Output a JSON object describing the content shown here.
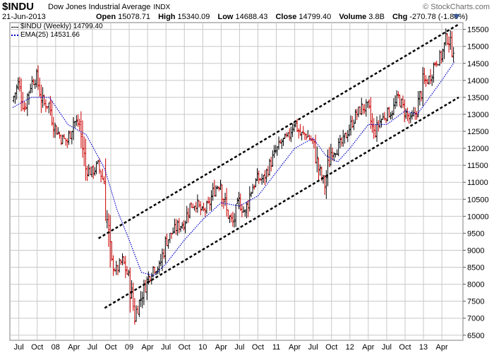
{
  "header": {
    "symbol": "$INDU",
    "name": "Dow Jones Industrial Average",
    "exchange": "INDX",
    "brand": "© StockCharts.com",
    "date": "21-Jun-2013",
    "stats": [
      {
        "label": "Open",
        "value": "15078.71"
      },
      {
        "label": "High",
        "value": "15340.09"
      },
      {
        "label": "Low",
        "value": "14688.43"
      },
      {
        "label": "Close",
        "value": "14799.40"
      },
      {
        "label": "Volume",
        "value": "3.8B"
      },
      {
        "label": "Chg",
        "value": "-270.78 (-1.80%)"
      }
    ]
  },
  "legend": {
    "price": "$INDU (Weekly) 14799.40",
    "ema": "EMA(25) 14531.66"
  },
  "colors": {
    "up": "#000000",
    "down": "#cc0000",
    "ema": "#0000cc",
    "grid": "#c8c8c8",
    "plot_bg": "#ffffff",
    "channel": "#000000"
  },
  "chart_data": {
    "type": "ohlc-bar",
    "interval": "weekly",
    "x_ticks": [
      {
        "label": "Jul",
        "date": "2007-07"
      },
      {
        "label": "Oct",
        "date": "2007-10"
      },
      {
        "label": "08",
        "date": "2008-01"
      },
      {
        "label": "Apr",
        "date": "2008-04"
      },
      {
        "label": "Jul",
        "date": "2008-07"
      },
      {
        "label": "Oct",
        "date": "2008-10"
      },
      {
        "label": "09",
        "date": "2009-01"
      },
      {
        "label": "Apr",
        "date": "2009-04"
      },
      {
        "label": "Jul",
        "date": "2009-07"
      },
      {
        "label": "Oct",
        "date": "2009-10"
      },
      {
        "label": "10",
        "date": "2010-01"
      },
      {
        "label": "Apr",
        "date": "2010-04"
      },
      {
        "label": "Jul",
        "date": "2010-07"
      },
      {
        "label": "Oct",
        "date": "2010-10"
      },
      {
        "label": "11",
        "date": "2011-01"
      },
      {
        "label": "Apr",
        "date": "2011-04"
      },
      {
        "label": "Jul",
        "date": "2011-07"
      },
      {
        "label": "Oct",
        "date": "2011-10"
      },
      {
        "label": "12",
        "date": "2012-01"
      },
      {
        "label": "Apr",
        "date": "2012-04"
      },
      {
        "label": "Jul",
        "date": "2012-07"
      },
      {
        "label": "Oct",
        "date": "2012-10"
      },
      {
        "label": "13",
        "date": "2013-01"
      },
      {
        "label": "Apr",
        "date": "2013-04"
      }
    ],
    "y_ticks": [
      6500,
      7000,
      7500,
      8000,
      8500,
      9000,
      9500,
      10000,
      10500,
      11000,
      11500,
      12000,
      12500,
      13000,
      13500,
      14000,
      14500,
      15000,
      15500
    ],
    "ylim": [
      6350,
      15700
    ],
    "xlim": [
      "2007-06",
      "2013-06"
    ],
    "grid": true,
    "price_path": [
      {
        "date": "2007-06",
        "close": 13400
      },
      {
        "date": "2007-07",
        "close": 13900
      },
      {
        "date": "2007-08",
        "close": 13200
      },
      {
        "date": "2007-09",
        "close": 13900
      },
      {
        "date": "2007-10",
        "close": 14100
      },
      {
        "date": "2007-11",
        "close": 13300
      },
      {
        "date": "2007-12",
        "close": 13300
      },
      {
        "date": "2008-01",
        "close": 12600
      },
      {
        "date": "2008-02",
        "close": 12300
      },
      {
        "date": "2008-03",
        "close": 12200
      },
      {
        "date": "2008-04",
        "close": 12800
      },
      {
        "date": "2008-05",
        "close": 12700
      },
      {
        "date": "2008-06",
        "close": 11400
      },
      {
        "date": "2008-07",
        "close": 11300
      },
      {
        "date": "2008-08",
        "close": 11500
      },
      {
        "date": "2008-09",
        "close": 11000
      },
      {
        "date": "2008-10",
        "close": 8700
      },
      {
        "date": "2008-11",
        "close": 8400
      },
      {
        "date": "2008-12",
        "close": 8700
      },
      {
        "date": "2009-01",
        "close": 8200
      },
      {
        "date": "2009-02",
        "close": 7100
      },
      {
        "date": "2009-03",
        "close": 7600
      },
      {
        "date": "2009-04",
        "close": 8100
      },
      {
        "date": "2009-05",
        "close": 8500
      },
      {
        "date": "2009-06",
        "close": 8500
      },
      {
        "date": "2009-07",
        "close": 9200
      },
      {
        "date": "2009-08",
        "close": 9500
      },
      {
        "date": "2009-09",
        "close": 9700
      },
      {
        "date": "2009-10",
        "close": 9800
      },
      {
        "date": "2009-11",
        "close": 10300
      },
      {
        "date": "2009-12",
        "close": 10400
      },
      {
        "date": "2010-01",
        "close": 10100
      },
      {
        "date": "2010-02",
        "close": 10300
      },
      {
        "date": "2010-03",
        "close": 10800
      },
      {
        "date": "2010-04",
        "close": 11000
      },
      {
        "date": "2010-05",
        "close": 10100
      },
      {
        "date": "2010-06",
        "close": 9800
      },
      {
        "date": "2010-07",
        "close": 10400
      },
      {
        "date": "2010-08",
        "close": 10100
      },
      {
        "date": "2010-09",
        "close": 10800
      },
      {
        "date": "2010-10",
        "close": 11100
      },
      {
        "date": "2010-11",
        "close": 11100
      },
      {
        "date": "2010-12",
        "close": 11500
      },
      {
        "date": "2011-01",
        "close": 11900
      },
      {
        "date": "2011-02",
        "close": 12200
      },
      {
        "date": "2011-03",
        "close": 12300
      },
      {
        "date": "2011-04",
        "close": 12800
      },
      {
        "date": "2011-05",
        "close": 12400
      },
      {
        "date": "2011-06",
        "close": 12400
      },
      {
        "date": "2011-07",
        "close": 12200
      },
      {
        "date": "2011-08",
        "close": 11400
      },
      {
        "date": "2011-09",
        "close": 10900
      },
      {
        "date": "2011-10",
        "close": 11900
      },
      {
        "date": "2011-11",
        "close": 12000
      },
      {
        "date": "2011-12",
        "close": 12200
      },
      {
        "date": "2012-01",
        "close": 12600
      },
      {
        "date": "2012-02",
        "close": 12950
      },
      {
        "date": "2012-03",
        "close": 13200
      },
      {
        "date": "2012-04",
        "close": 13200
      },
      {
        "date": "2012-05",
        "close": 12400
      },
      {
        "date": "2012-06",
        "close": 12800
      },
      {
        "date": "2012-07",
        "close": 13000
      },
      {
        "date": "2012-08",
        "close": 13100
      },
      {
        "date": "2012-09",
        "close": 13500
      },
      {
        "date": "2012-10",
        "close": 13100
      },
      {
        "date": "2012-11",
        "close": 12800
      },
      {
        "date": "2012-12",
        "close": 13100
      },
      {
        "date": "2013-01",
        "close": 13900
      },
      {
        "date": "2013-02",
        "close": 14050
      },
      {
        "date": "2013-03",
        "close": 14550
      },
      {
        "date": "2013-04",
        "close": 14700
      },
      {
        "date": "2013-05",
        "close": 15300
      },
      {
        "date": "2013-06",
        "close": 14799.4
      }
    ],
    "ema_path": [
      {
        "date": "2007-06",
        "value": 13200
      },
      {
        "date": "2007-09",
        "value": 13500
      },
      {
        "date": "2007-12",
        "value": 13500
      },
      {
        "date": "2008-03",
        "value": 12700
      },
      {
        "date": "2008-06",
        "value": 12400
      },
      {
        "date": "2008-09",
        "value": 11400
      },
      {
        "date": "2008-11",
        "value": 10200
      },
      {
        "date": "2009-01",
        "value": 9300
      },
      {
        "date": "2009-03",
        "value": 8350
      },
      {
        "date": "2009-05",
        "value": 8250
      },
      {
        "date": "2009-07",
        "value": 8600
      },
      {
        "date": "2009-10",
        "value": 9300
      },
      {
        "date": "2010-01",
        "value": 9900
      },
      {
        "date": "2010-04",
        "value": 10400
      },
      {
        "date": "2010-07",
        "value": 10300
      },
      {
        "date": "2010-10",
        "value": 10600
      },
      {
        "date": "2011-01",
        "value": 11300
      },
      {
        "date": "2011-04",
        "value": 12000
      },
      {
        "date": "2011-07",
        "value": 12300
      },
      {
        "date": "2011-09",
        "value": 11800
      },
      {
        "date": "2011-11",
        "value": 11600
      },
      {
        "date": "2012-01",
        "value": 12000
      },
      {
        "date": "2012-04",
        "value": 12700
      },
      {
        "date": "2012-07",
        "value": 12700
      },
      {
        "date": "2012-10",
        "value": 13100
      },
      {
        "date": "2012-12",
        "value": 13000
      },
      {
        "date": "2013-02",
        "value": 13500
      },
      {
        "date": "2013-04",
        "value": 14000
      },
      {
        "date": "2013-06",
        "value": 14531.66
      }
    ],
    "trend_lines": [
      {
        "name": "upper-channel",
        "from": {
          "date": "2008-08",
          "value": 9350
        },
        "to": {
          "date": "2013-06",
          "value": 15650
        }
      },
      {
        "name": "lower-channel",
        "from": {
          "date": "2008-09",
          "value": 7300
        },
        "to": {
          "date": "2013-06",
          "value": 13500
        }
      }
    ],
    "bar_seed": 7
  }
}
